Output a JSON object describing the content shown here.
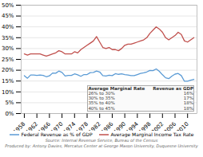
{
  "chart_data": {
    "type": "line",
    "x": [
      1958,
      1959,
      1960,
      1961,
      1962,
      1963,
      1964,
      1965,
      1966,
      1967,
      1968,
      1969,
      1970,
      1971,
      1972,
      1973,
      1974,
      1975,
      1976,
      1977,
      1978,
      1979,
      1980,
      1981,
      1982,
      1983,
      1984,
      1985,
      1986,
      1987,
      1988,
      1989,
      1990,
      1991,
      1992,
      1993,
      1994,
      1995,
      1996,
      1997,
      1998,
      1999,
      2000,
      2001,
      2002,
      2003,
      2004,
      2005,
      2006,
      2007,
      2008,
      2009,
      2010,
      2011,
      2012
    ],
    "series": [
      {
        "name": "Federal Revenue as % of GDP",
        "color": "#5b9bd5",
        "values": [
          17.5,
          16.3,
          17.8,
          17.8,
          17.6,
          17.8,
          17.6,
          17.0,
          17.4,
          18.7,
          18.6,
          19.6,
          19.0,
          17.3,
          17.6,
          17.6,
          18.3,
          17.9,
          17.2,
          18.0,
          18.0,
          18.9,
          19.0,
          19.6,
          19.2,
          17.5,
          17.3,
          17.7,
          17.5,
          18.4,
          18.1,
          18.3,
          18.0,
          17.8,
          17.5,
          17.5,
          18.0,
          18.5,
          18.8,
          19.2,
          19.9,
          19.8,
          20.6,
          19.5,
          17.9,
          16.5,
          16.1,
          17.3,
          18.2,
          18.5,
          17.5,
          14.9,
          14.9,
          15.4,
          15.8
        ]
      },
      {
        "name": "Average Marginal Income Tax Rate",
        "color": "#c0504d",
        "values": [
          27.5,
          27.0,
          27.5,
          27.5,
          27.5,
          27.5,
          27.0,
          26.5,
          27.0,
          27.5,
          28.0,
          29.0,
          28.5,
          27.5,
          27.5,
          27.5,
          28.5,
          28.0,
          29.5,
          30.5,
          31.5,
          32.5,
          33.5,
          35.5,
          33.0,
          30.5,
          30.0,
          30.5,
          29.5,
          29.5,
          29.0,
          30.0,
          31.5,
          32.0,
          32.0,
          32.5,
          33.0,
          33.5,
          34.0,
          35.0,
          37.0,
          38.5,
          40.0,
          39.0,
          37.5,
          35.0,
          34.0,
          35.0,
          36.0,
          37.5,
          36.5,
          33.5,
          33.0,
          34.0,
          35.0
        ]
      }
    ],
    "xlim": [
      1957,
      2013
    ],
    "xticks": [
      1958,
      1962,
      1966,
      1970,
      1974,
      1978,
      1982,
      1986,
      1990,
      1994,
      1998,
      2002,
      2006,
      2010
    ],
    "ylim": [
      0,
      50
    ],
    "yticks": [
      {
        "value": 0,
        "label": "0%"
      },
      {
        "value": 5,
        "label": "5%"
      },
      {
        "value": 10,
        "label": "10%"
      },
      {
        "value": 15,
        "label": "15%"
      },
      {
        "value": 20,
        "label": "20%"
      },
      {
        "value": 25,
        "label": "25%"
      },
      {
        "value": 30,
        "label": "30%"
      },
      {
        "value": 35,
        "label": "35%"
      },
      {
        "value": 40,
        "label": "40%"
      },
      {
        "value": 45,
        "label": "45%"
      },
      {
        "value": 50,
        "label": "50%"
      }
    ],
    "grid": true,
    "legend": "bottom",
    "table": {
      "columns": [
        "Average Marginal Rate",
        "Revenue as GDP"
      ],
      "rows": [
        [
          "26% to 30%",
          "16%"
        ],
        [
          "30% to 35%",
          "17%"
        ],
        [
          "35% to 40%",
          "18%"
        ],
        [
          "40% to 45%",
          "18%"
        ]
      ]
    },
    "caption": [
      "Source: Internal Revenue Service, Bureau of the Census",
      "Produced by: Antony Davies, Mercatus Center at George Mason University, Duquesne University"
    ]
  }
}
